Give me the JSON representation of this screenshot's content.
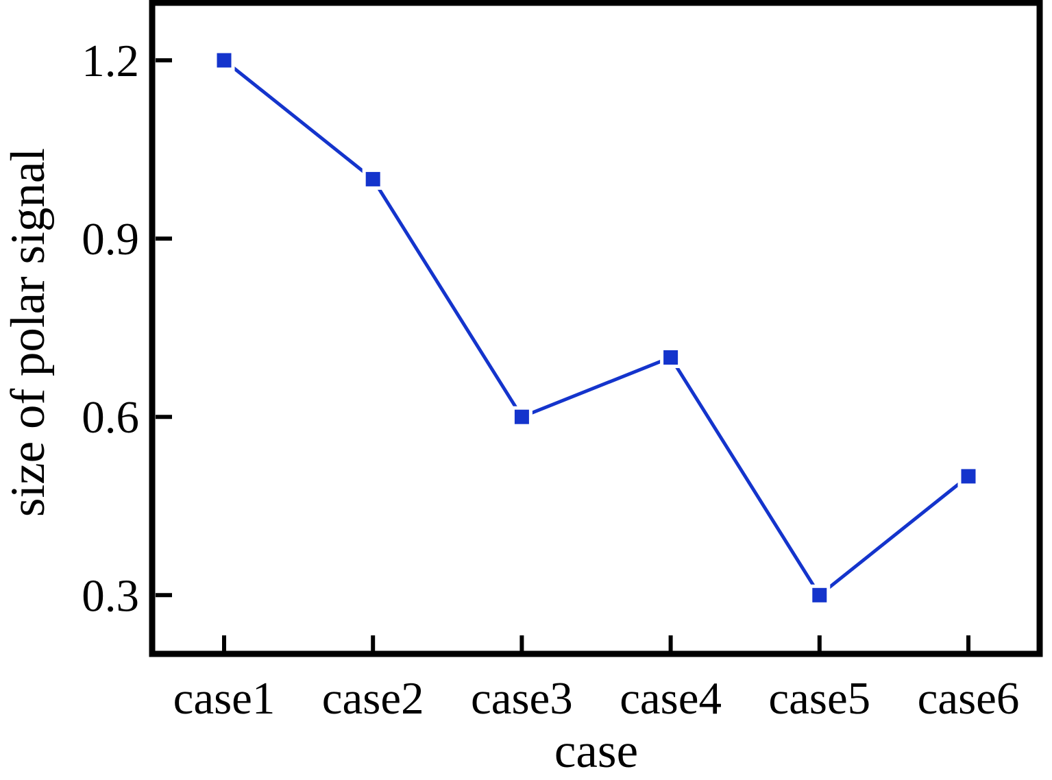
{
  "chart_data": {
    "type": "line",
    "categories": [
      "case1",
      "case2",
      "case3",
      "case4",
      "case5",
      "case6"
    ],
    "values": [
      1.2,
      1.0,
      0.6,
      0.7,
      0.3,
      0.5
    ],
    "series": [
      {
        "name": "size of polar signal",
        "values": [
          1.2,
          1.0,
          0.6,
          0.7,
          0.3,
          0.5
        ]
      }
    ],
    "title": "",
    "xlabel": "case",
    "ylabel": "size of polar signal",
    "ylim": [
      0.2,
      1.3
    ],
    "yticks": [
      0.3,
      0.6,
      0.9,
      1.2
    ],
    "ytick_labels": [
      "0.3",
      "0.6",
      "0.9",
      "1.2"
    ],
    "grid": false,
    "legend_position": "none",
    "marker": "square",
    "line_color": "#1434cc",
    "marker_color": "#1434cc",
    "axis_color": "#000000",
    "background_color": "#ffffff"
  }
}
